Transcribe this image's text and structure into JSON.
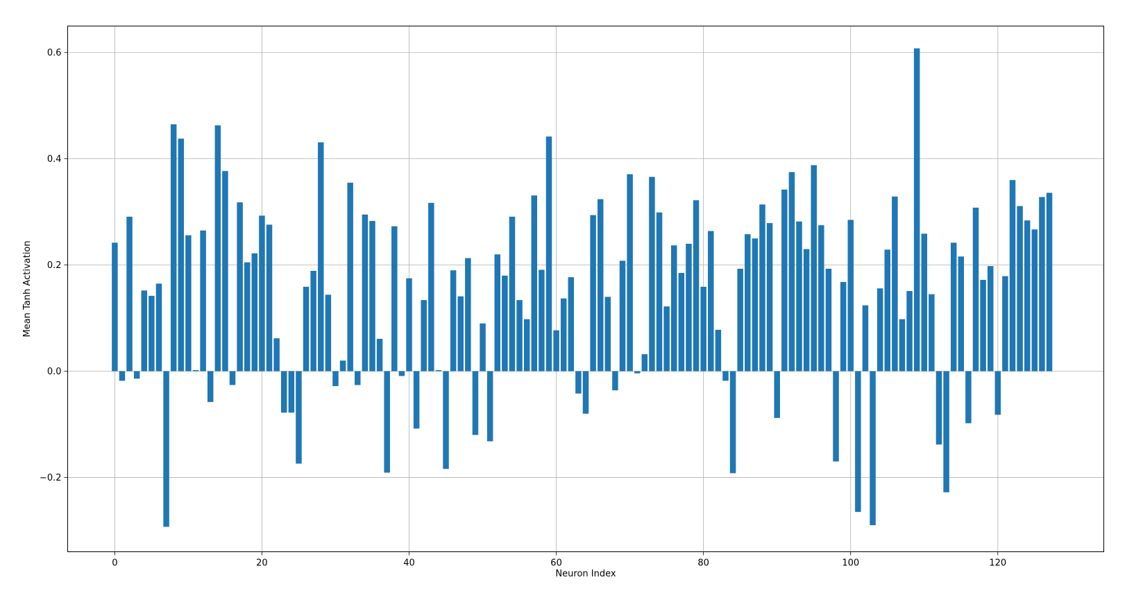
{
  "chart_data": {
    "type": "bar",
    "title": "",
    "xlabel": "Neuron Index",
    "ylabel": "Mean Tanh Activation",
    "xlim": [
      -6.4,
      134.4
    ],
    "ylim": [
      -0.34,
      0.65
    ],
    "x_ticks": [
      0,
      20,
      40,
      60,
      80,
      100,
      120
    ],
    "x_tick_labels": [
      "0",
      "20",
      "40",
      "60",
      "80",
      "100",
      "120"
    ],
    "y_ticks": [
      -0.2,
      0.0,
      0.2,
      0.4,
      0.6
    ],
    "y_tick_labels": [
      "−0.2",
      "0.0",
      "0.2",
      "0.4",
      "0.6"
    ],
    "grid": true,
    "bar_color": "#1f77b4",
    "values": [
      0.242,
      -0.018,
      0.291,
      -0.014,
      0.152,
      0.142,
      0.165,
      -0.293,
      0.465,
      0.438,
      0.256,
      0.002,
      0.265,
      -0.058,
      0.463,
      0.377,
      -0.026,
      0.318,
      0.205,
      0.222,
      0.293,
      0.276,
      0.062,
      -0.078,
      -0.078,
      -0.174,
      0.159,
      0.189,
      0.431,
      0.144,
      -0.028,
      0.02,
      0.355,
      -0.026,
      0.295,
      0.283,
      0.061,
      -0.191,
      0.273,
      -0.009,
      0.175,
      -0.108,
      0.134,
      0.317,
      0.002,
      -0.184,
      0.19,
      0.141,
      0.213,
      -0.12,
      0.09,
      -0.132,
      0.22,
      0.18,
      0.291,
      0.134,
      0.098,
      0.331,
      0.191,
      0.442,
      0.077,
      0.137,
      0.177,
      -0.042,
      -0.08,
      0.294,
      0.324,
      0.14,
      -0.036,
      0.208,
      0.371,
      -0.004,
      0.032,
      0.366,
      0.299,
      0.122,
      0.237,
      0.185,
      0.24,
      0.322,
      0.159,
      0.264,
      0.078,
      -0.018,
      -0.192,
      0.193,
      0.258,
      0.25,
      0.314,
      0.279,
      -0.088,
      0.342,
      0.375,
      0.282,
      0.23,
      0.388,
      0.275,
      0.193,
      -0.17,
      0.168,
      0.285,
      -0.265,
      0.124,
      -0.29,
      0.156,
      0.229,
      0.329,
      0.098,
      0.151,
      0.608,
      0.259,
      0.145,
      -0.138,
      -0.228,
      0.242,
      0.216,
      -0.098,
      0.308,
      0.172,
      0.198,
      -0.082,
      0.179,
      0.36,
      0.311,
      0.284,
      0.267,
      0.328,
      0.336
    ]
  }
}
